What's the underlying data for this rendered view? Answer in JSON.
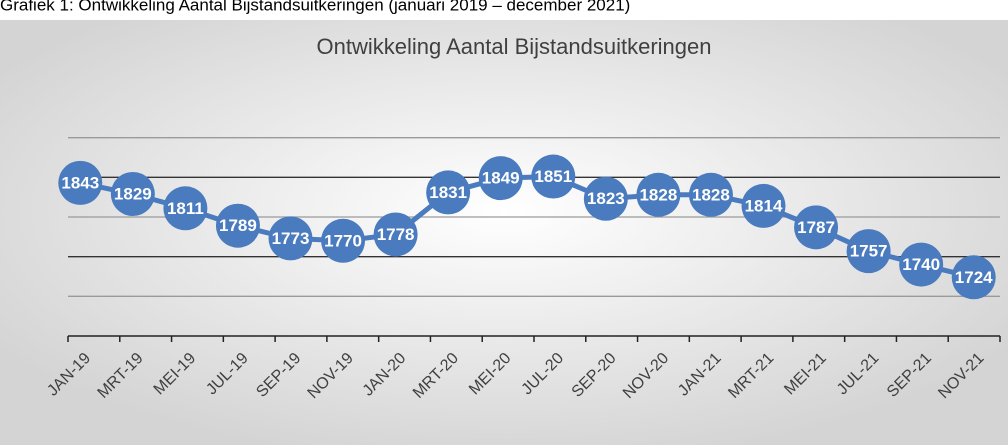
{
  "caption": "Grafiek 1: Ontwikkeling Aantal Bijstandsuitkeringen (januari 2019 – december 2021)",
  "chart_data": {
    "type": "line",
    "title": "Ontwikkeling Aantal Bijstandsuitkeringen",
    "categories": [
      "JAN-19",
      "MRT-19",
      "MEI-19",
      "JUL-19",
      "SEP-19",
      "NOV-19",
      "JAN-20",
      "MRT-20",
      "MEI-20",
      "JUL-20",
      "SEP-20",
      "NOV-20",
      "JAN-21",
      "MRT-21",
      "MEI-21",
      "JUL-21",
      "SEP-21",
      "NOV-21"
    ],
    "values": [
      1843,
      1829,
      1811,
      1789,
      1773,
      1770,
      1778,
      1831,
      1849,
      1851,
      1823,
      1828,
      1828,
      1814,
      1787,
      1757,
      1740,
      1724
    ],
    "color": "#4a7bbf",
    "ylim": [
      1650,
      1950
    ],
    "yticks": [
      1700,
      1750,
      1800,
      1850,
      1900
    ],
    "grid": true
  }
}
